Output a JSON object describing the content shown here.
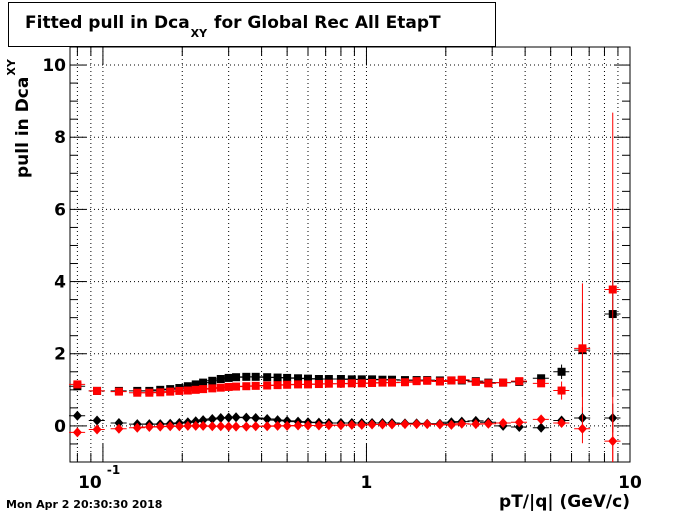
{
  "title": {
    "main": "Fitted pull in Dca",
    "subscript": "XY",
    "suffix": "for Global Rec All EtapT"
  },
  "timestamp": "Mon Apr  2 20:30:30 2018",
  "chart_data": {
    "type": "scatter",
    "title": "Fitted pull in Dca_XY for Global Rec All EtapT",
    "xlabel": "pT/|q| (GeV/c)",
    "ylabel_main": "pull in Dca",
    "ylabel_sub": "XY",
    "xscale": "log",
    "xlim": [
      0.075,
      10
    ],
    "ylim": [
      -1.0,
      10.5
    ],
    "grid": true,
    "y_ticks": [
      0,
      2,
      4,
      6,
      8,
      10
    ],
    "x_tick_labels": [
      {
        "value": 0.1,
        "base": "10",
        "exp": "-1"
      },
      {
        "value": 1,
        "text": "1"
      },
      {
        "value": 10,
        "text": "10"
      }
    ],
    "series": [
      {
        "color": "#000000",
        "marker": "square",
        "points": [
          [
            0.08,
            1.1
          ],
          [
            0.095,
            0.97
          ],
          [
            0.115,
            0.97
          ],
          [
            0.135,
            0.97
          ],
          [
            0.15,
            0.97
          ],
          [
            0.165,
            1.0
          ],
          [
            0.18,
            1.02
          ],
          [
            0.195,
            1.05
          ],
          [
            0.21,
            1.1
          ],
          [
            0.225,
            1.15
          ],
          [
            0.24,
            1.2
          ],
          [
            0.26,
            1.25
          ],
          [
            0.28,
            1.3
          ],
          [
            0.3,
            1.33
          ],
          [
            0.32,
            1.35
          ],
          [
            0.35,
            1.36
          ],
          [
            0.38,
            1.36
          ],
          [
            0.42,
            1.35
          ],
          [
            0.46,
            1.34
          ],
          [
            0.5,
            1.33
          ],
          [
            0.55,
            1.32
          ],
          [
            0.6,
            1.31
          ],
          [
            0.66,
            1.3
          ],
          [
            0.72,
            1.3
          ],
          [
            0.8,
            1.3
          ],
          [
            0.88,
            1.29
          ],
          [
            0.96,
            1.29
          ],
          [
            1.05,
            1.29
          ],
          [
            1.15,
            1.28
          ],
          [
            1.25,
            1.28
          ],
          [
            1.4,
            1.27
          ],
          [
            1.55,
            1.27
          ],
          [
            1.7,
            1.27
          ],
          [
            1.9,
            1.26
          ],
          [
            2.1,
            1.26
          ],
          [
            2.3,
            1.26
          ],
          [
            2.6,
            1.24
          ],
          [
            2.9,
            1.2
          ],
          [
            3.3,
            1.2
          ],
          [
            3.8,
            1.22
          ],
          [
            4.6,
            1.32
          ],
          [
            5.5,
            1.5
          ],
          [
            6.6,
            2.1
          ],
          [
            8.6,
            3.1
          ]
        ],
        "errors": [
          0.08,
          0.06,
          0.05,
          0.05,
          0.05,
          0.05,
          0.05,
          0.04,
          0.04,
          0.04,
          0.04,
          0.04,
          0.04,
          0.04,
          0.04,
          0.04,
          0.04,
          0.04,
          0.04,
          0.04,
          0.04,
          0.04,
          0.04,
          0.04,
          0.04,
          0.04,
          0.04,
          0.04,
          0.04,
          0.04,
          0.04,
          0.04,
          0.04,
          0.04,
          0.04,
          0.04,
          0.04,
          0.05,
          0.05,
          0.06,
          0.1,
          0.2,
          1.3,
          2.3
        ]
      },
      {
        "color": "#000000",
        "marker": "diamond",
        "points": [
          [
            0.08,
            0.28
          ],
          [
            0.095,
            0.15
          ],
          [
            0.115,
            0.08
          ],
          [
            0.135,
            0.05
          ],
          [
            0.15,
            0.05
          ],
          [
            0.165,
            0.05
          ],
          [
            0.18,
            0.06
          ],
          [
            0.195,
            0.08
          ],
          [
            0.21,
            0.1
          ],
          [
            0.225,
            0.13
          ],
          [
            0.24,
            0.16
          ],
          [
            0.26,
            0.19
          ],
          [
            0.28,
            0.22
          ],
          [
            0.3,
            0.23
          ],
          [
            0.32,
            0.24
          ],
          [
            0.35,
            0.23
          ],
          [
            0.38,
            0.22
          ],
          [
            0.42,
            0.19
          ],
          [
            0.46,
            0.16
          ],
          [
            0.5,
            0.14
          ],
          [
            0.55,
            0.12
          ],
          [
            0.6,
            0.1
          ],
          [
            0.66,
            0.09
          ],
          [
            0.72,
            0.08
          ],
          [
            0.8,
            0.08
          ],
          [
            0.88,
            0.08
          ],
          [
            0.96,
            0.08
          ],
          [
            1.05,
            0.08
          ],
          [
            1.15,
            0.08
          ],
          [
            1.25,
            0.08
          ],
          [
            1.4,
            0.07
          ],
          [
            1.55,
            0.07
          ],
          [
            1.7,
            0.06
          ],
          [
            1.9,
            0.06
          ],
          [
            2.1,
            0.1
          ],
          [
            2.3,
            0.12
          ],
          [
            2.6,
            0.14
          ],
          [
            2.9,
            0.1
          ],
          [
            3.3,
            0.0
          ],
          [
            3.8,
            -0.03
          ],
          [
            4.6,
            -0.05
          ],
          [
            5.5,
            0.15
          ],
          [
            6.6,
            0.22
          ],
          [
            8.6,
            0.22
          ]
        ],
        "errors": [
          0.05,
          0.04,
          0.03,
          0.03,
          0.03,
          0.03,
          0.03,
          0.03,
          0.03,
          0.03,
          0.03,
          0.03,
          0.03,
          0.03,
          0.03,
          0.03,
          0.03,
          0.03,
          0.03,
          0.03,
          0.03,
          0.03,
          0.03,
          0.03,
          0.03,
          0.03,
          0.03,
          0.03,
          0.03,
          0.03,
          0.03,
          0.03,
          0.03,
          0.03,
          0.03,
          0.03,
          0.03,
          0.04,
          0.04,
          0.05,
          0.05,
          0.08,
          0.3,
          0.4
        ]
      },
      {
        "color": "#ff0000",
        "marker": "square",
        "points": [
          [
            0.08,
            1.15
          ],
          [
            0.095,
            0.97
          ],
          [
            0.115,
            0.95
          ],
          [
            0.135,
            0.92
          ],
          [
            0.15,
            0.92
          ],
          [
            0.165,
            0.93
          ],
          [
            0.18,
            0.95
          ],
          [
            0.195,
            0.97
          ],
          [
            0.21,
            0.98
          ],
          [
            0.225,
            1.0
          ],
          [
            0.24,
            1.02
          ],
          [
            0.26,
            1.04
          ],
          [
            0.28,
            1.06
          ],
          [
            0.3,
            1.08
          ],
          [
            0.32,
            1.09
          ],
          [
            0.35,
            1.1
          ],
          [
            0.38,
            1.11
          ],
          [
            0.42,
            1.12
          ],
          [
            0.46,
            1.13
          ],
          [
            0.5,
            1.14
          ],
          [
            0.55,
            1.15
          ],
          [
            0.6,
            1.15
          ],
          [
            0.66,
            1.16
          ],
          [
            0.72,
            1.17
          ],
          [
            0.8,
            1.17
          ],
          [
            0.88,
            1.18
          ],
          [
            0.96,
            1.18
          ],
          [
            1.05,
            1.19
          ],
          [
            1.15,
            1.2
          ],
          [
            1.25,
            1.2
          ],
          [
            1.4,
            1.21
          ],
          [
            1.55,
            1.24
          ],
          [
            1.7,
            1.25
          ],
          [
            1.9,
            1.23
          ],
          [
            2.1,
            1.26
          ],
          [
            2.3,
            1.28
          ],
          [
            2.6,
            1.22
          ],
          [
            2.9,
            1.18
          ],
          [
            3.3,
            1.2
          ],
          [
            3.8,
            1.24
          ],
          [
            4.6,
            1.18
          ],
          [
            5.5,
            0.98
          ],
          [
            6.6,
            2.15
          ],
          [
            8.6,
            3.78
          ]
        ],
        "errors": [
          0.08,
          0.06,
          0.05,
          0.05,
          0.05,
          0.05,
          0.05,
          0.04,
          0.04,
          0.04,
          0.04,
          0.04,
          0.04,
          0.04,
          0.04,
          0.04,
          0.04,
          0.04,
          0.04,
          0.04,
          0.04,
          0.04,
          0.04,
          0.04,
          0.04,
          0.04,
          0.04,
          0.04,
          0.04,
          0.04,
          0.04,
          0.04,
          0.04,
          0.04,
          0.04,
          0.04,
          0.05,
          0.05,
          0.06,
          0.07,
          0.1,
          0.25,
          1.8,
          4.9
        ]
      },
      {
        "color": "#ff0000",
        "marker": "diamond",
        "points": [
          [
            0.08,
            -0.18
          ],
          [
            0.095,
            -0.1
          ],
          [
            0.115,
            -0.08
          ],
          [
            0.135,
            -0.05
          ],
          [
            0.15,
            -0.03
          ],
          [
            0.165,
            -0.02
          ],
          [
            0.18,
            -0.01
          ],
          [
            0.195,
            -0.01
          ],
          [
            0.21,
            0.0
          ],
          [
            0.225,
            0.0
          ],
          [
            0.24,
            0.0
          ],
          [
            0.26,
            -0.01
          ],
          [
            0.28,
            -0.01
          ],
          [
            0.3,
            -0.02
          ],
          [
            0.32,
            -0.02
          ],
          [
            0.35,
            -0.02
          ],
          [
            0.38,
            -0.01
          ],
          [
            0.42,
            -0.01
          ],
          [
            0.46,
            0.0
          ],
          [
            0.5,
            0.0
          ],
          [
            0.55,
            0.01
          ],
          [
            0.6,
            0.01
          ],
          [
            0.66,
            0.01
          ],
          [
            0.72,
            0.02
          ],
          [
            0.8,
            0.02
          ],
          [
            0.88,
            0.03
          ],
          [
            0.96,
            0.03
          ],
          [
            1.05,
            0.04
          ],
          [
            1.15,
            0.04
          ],
          [
            1.25,
            0.04
          ],
          [
            1.4,
            0.05
          ],
          [
            1.55,
            0.05
          ],
          [
            1.7,
            0.05
          ],
          [
            1.9,
            0.04
          ],
          [
            2.1,
            0.03
          ],
          [
            2.3,
            0.06
          ],
          [
            2.6,
            0.05
          ],
          [
            2.9,
            0.06
          ],
          [
            3.3,
            0.08
          ],
          [
            3.8,
            0.1
          ],
          [
            4.6,
            0.18
          ],
          [
            5.5,
            0.08
          ],
          [
            6.6,
            -0.08
          ],
          [
            8.6,
            -0.42
          ]
        ],
        "errors": [
          0.05,
          0.04,
          0.03,
          0.03,
          0.03,
          0.03,
          0.03,
          0.03,
          0.03,
          0.03,
          0.03,
          0.03,
          0.03,
          0.03,
          0.03,
          0.03,
          0.03,
          0.03,
          0.03,
          0.03,
          0.03,
          0.03,
          0.03,
          0.03,
          0.03,
          0.03,
          0.03,
          0.03,
          0.03,
          0.03,
          0.03,
          0.03,
          0.03,
          0.03,
          0.03,
          0.03,
          0.03,
          0.04,
          0.04,
          0.05,
          0.05,
          0.1,
          0.4,
          0.6
        ]
      }
    ]
  }
}
